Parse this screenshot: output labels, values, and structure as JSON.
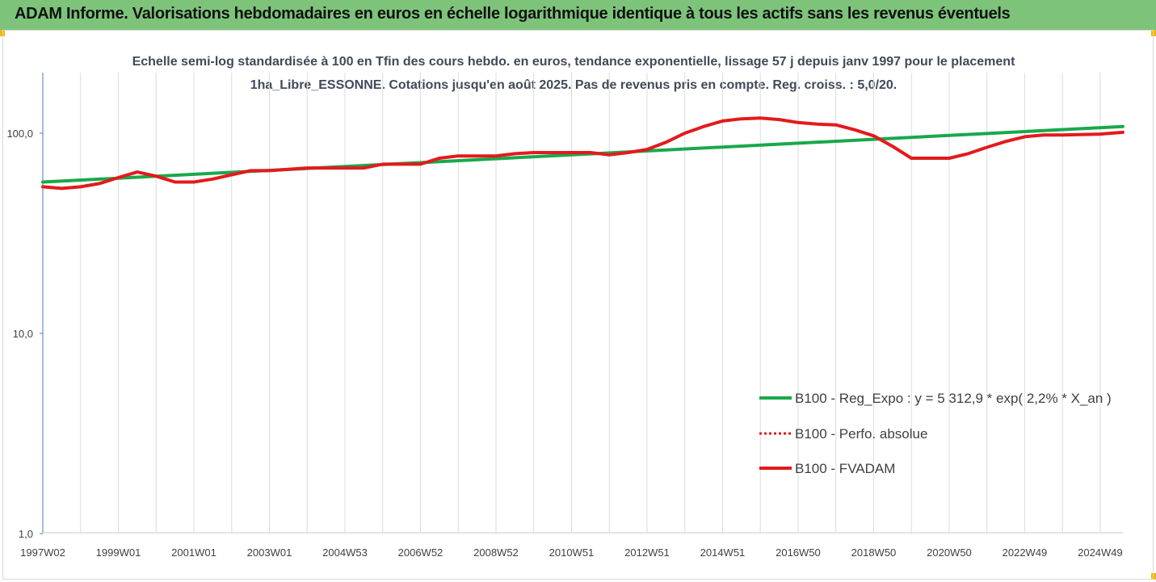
{
  "banner": {
    "title": "ADAM Informe. Valorisations hebdomadaires en euros en échelle logarithmique identique à tous les actifs sans les revenus éventuels"
  },
  "chart_data": {
    "type": "line",
    "title": "Echelle semi-log standardisée à 100 en Tfin des cours hebdo. en euros, tendance exponentielle, lissage 57 j depuis janv 1997 pour le placement 1ha_Libre_ESSONNE. Cotations jusqu'en août 2025. Pas de revenus pris en compte. Reg. croiss. : 5,0/20.",
    "y_scale": "log",
    "ylim": [
      1,
      200
    ],
    "xlim": [
      1997.0,
      2025.6
    ],
    "y_ticks": [
      {
        "value": 1,
        "label": "1,0"
      },
      {
        "value": 10,
        "label": "10,0"
      },
      {
        "value": 100,
        "label": "100,0"
      }
    ],
    "x_ticks": [
      {
        "value": 1997.0,
        "label": "1997W02"
      },
      {
        "value": 1999.0,
        "label": "1999W01"
      },
      {
        "value": 2001.0,
        "label": "2001W01"
      },
      {
        "value": 2003.0,
        "label": "2003W01"
      },
      {
        "value": 2005.0,
        "label": "2004W53"
      },
      {
        "value": 2007.0,
        "label": "2006W52"
      },
      {
        "value": 2009.0,
        "label": "2008W52"
      },
      {
        "value": 2011.0,
        "label": "2010W51"
      },
      {
        "value": 2013.0,
        "label": "2012W51"
      },
      {
        "value": 2015.0,
        "label": "2014W51"
      },
      {
        "value": 2017.0,
        "label": "2016W50"
      },
      {
        "value": 2019.0,
        "label": "2018W50"
      },
      {
        "value": 2021.0,
        "label": "2020W50"
      },
      {
        "value": 2023.0,
        "label": "2022W49"
      },
      {
        "value": 2025.0,
        "label": "2024W49"
      }
    ],
    "grid": "vertical",
    "legend_position": "right",
    "series": [
      {
        "name": "B100 - Reg_Expo : y = 5 312,9 * exp( 2,2% *  X_an )",
        "color": "#1aa84b",
        "style": "solid",
        "x": [
          1997.0,
          2025.6
        ],
        "y": [
          57,
          108
        ]
      },
      {
        "name": "B100 - Perfo. absolue",
        "color": "#e31a1c",
        "style": "dotted",
        "x": [],
        "y": []
      },
      {
        "name": "B100 - FVADAM",
        "color": "#e31a1c",
        "style": "solid",
        "x": [
          1997.0,
          1997.5,
          1998.0,
          1998.5,
          1999.0,
          1999.5,
          2000.0,
          2000.5,
          2001.0,
          2001.5,
          2002.0,
          2002.5,
          2003.0,
          2004.0,
          2005.0,
          2005.5,
          2006.0,
          2007.0,
          2007.5,
          2008.0,
          2008.5,
          2009.0,
          2009.5,
          2010.0,
          2011.0,
          2011.5,
          2012.0,
          2012.5,
          2013.0,
          2013.5,
          2014.0,
          2014.5,
          2015.0,
          2015.5,
          2016.0,
          2016.5,
          2017.0,
          2017.5,
          2018.0,
          2018.5,
          2019.0,
          2019.5,
          2020.0,
          2020.5,
          2021.0,
          2021.5,
          2022.0,
          2022.5,
          2023.0,
          2023.5,
          2024.0,
          2025.0,
          2025.6
        ],
        "y": [
          54,
          53,
          54,
          56,
          60,
          64,
          61,
          57,
          57,
          59,
          62,
          65,
          65,
          67,
          67,
          67,
          70,
          70,
          75,
          77,
          77,
          77,
          79,
          80,
          80,
          80,
          78,
          80,
          83,
          90,
          100,
          108,
          115,
          118,
          119,
          117,
          113,
          111,
          110,
          104,
          97,
          86,
          75,
          75,
          75,
          79,
          85,
          91,
          96,
          98,
          98,
          99,
          101
        ]
      }
    ]
  }
}
